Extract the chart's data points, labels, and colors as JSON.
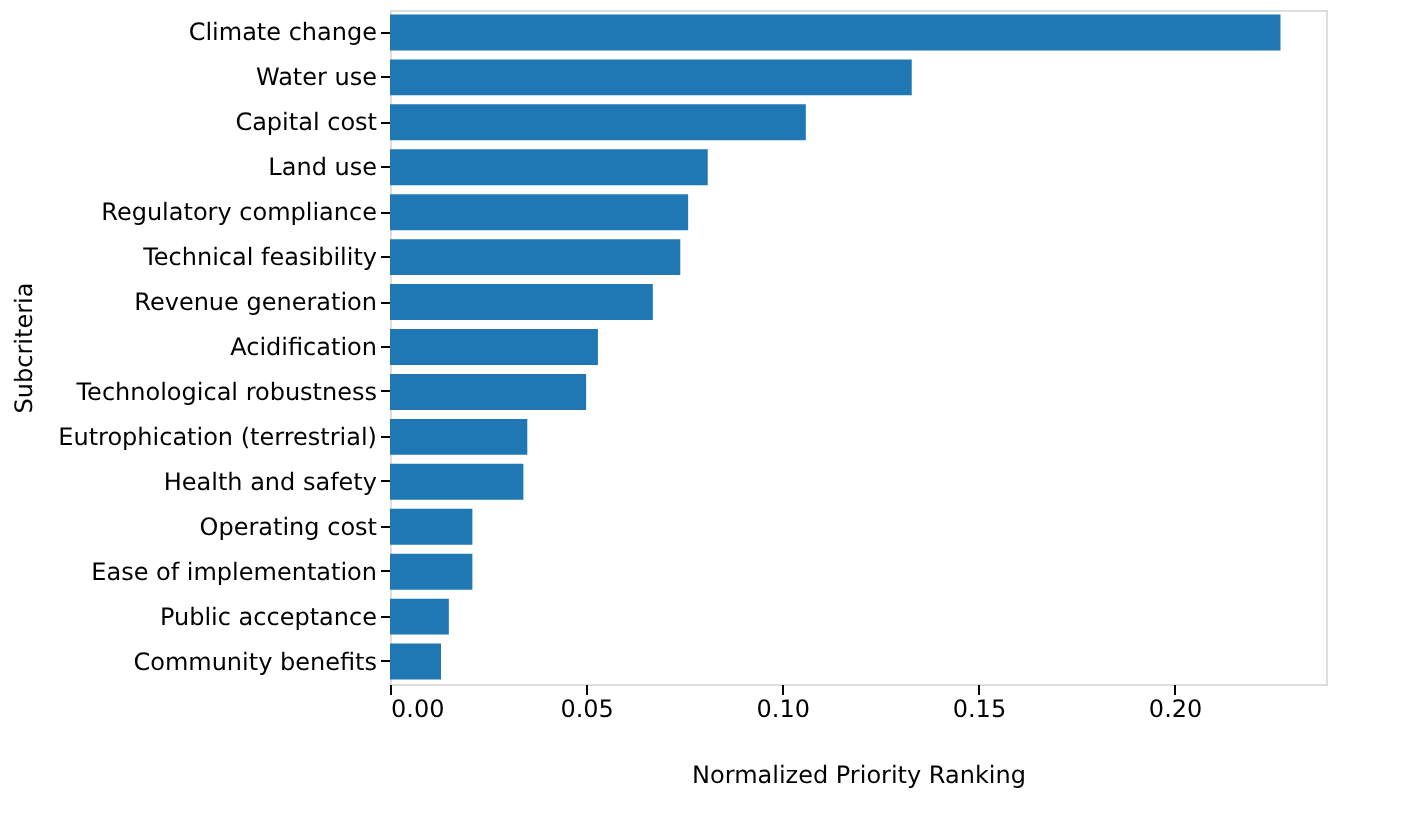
{
  "chart_data": {
    "type": "bar",
    "orientation": "horizontal",
    "xlabel": "Normalized Priority Ranking",
    "ylabel": "Subcriteria",
    "categories": [
      "Climate change",
      "Water use",
      "Capital cost",
      "Land use",
      "Regulatory compliance",
      "Technical feasibility",
      "Revenue generation",
      "Acidification",
      "Technological robustness",
      "Eutrophication (terrestrial)",
      "Health and safety",
      "Operating cost",
      "Ease of implementation",
      "Public acceptance",
      "Community benefits"
    ],
    "values": [
      0.227,
      0.133,
      0.106,
      0.081,
      0.076,
      0.074,
      0.067,
      0.053,
      0.05,
      0.035,
      0.034,
      0.021,
      0.021,
      0.015,
      0.013
    ],
    "color": "#1f77b4",
    "xlim": [
      0,
      0.2386
    ],
    "xticks": [
      {
        "value": 0,
        "label": "0.00"
      },
      {
        "value": 0.05,
        "label": "0.05"
      },
      {
        "value": 0.1,
        "label": "0.10"
      },
      {
        "value": 0.15,
        "label": "0.15"
      },
      {
        "value": 0.2,
        "label": "0.20"
      }
    ],
    "grid": false
  }
}
